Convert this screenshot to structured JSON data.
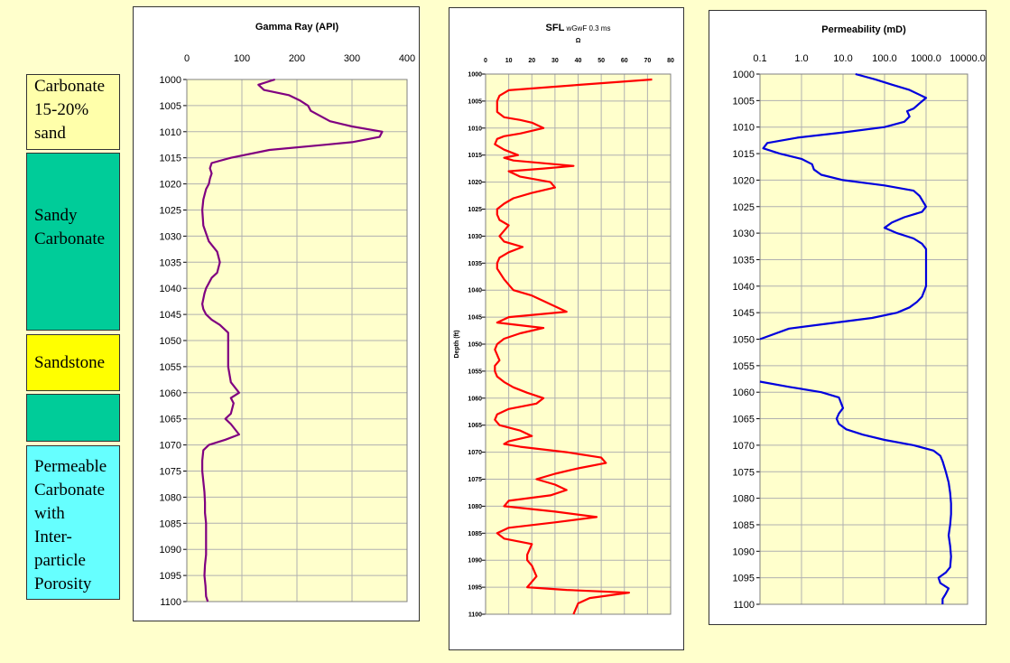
{
  "lithology": [
    {
      "label": "Carbonate\n15-20%\nsand",
      "color": "#ffffaa"
    },
    {
      "label": "\nSandy\nCarbonate",
      "color": "#00cc99"
    },
    {
      "label": "Sandstone",
      "color": "#ffff00"
    },
    {
      "label": "",
      "color": "#00cc99"
    },
    {
      "label": "Permeable\nCarbonate\nwith\nInter-\nparticle\nPorosity",
      "color": "#66ffff"
    }
  ],
  "chart_data": [
    {
      "type": "line",
      "title": "Gamma Ray (API)",
      "x_axis_position": "top",
      "xlim": [
        0,
        400
      ],
      "x_ticks": [
        "0",
        "100",
        "200",
        "300",
        "400"
      ],
      "ylim": [
        1000,
        1100
      ],
      "y_ticks": [
        "1000",
        "1005",
        "1010",
        "1015",
        "1020",
        "1025",
        "1030",
        "1035",
        "1040",
        "1045",
        "1050",
        "1055",
        "1060",
        "1065",
        "1070",
        "1075",
        "1080",
        "1085",
        "1090",
        "1095",
        "1100"
      ],
      "ylabel": "",
      "grid": true,
      "series": [
        {
          "color": "#800080",
          "x": [
            160,
            130,
            140,
            185,
            205,
            220,
            225,
            260,
            300,
            355,
            350,
            300,
            250,
            150,
            80,
            45,
            42,
            45,
            42,
            40,
            35,
            30,
            28,
            30,
            40,
            55,
            60,
            55,
            45,
            35,
            32,
            30,
            28,
            30,
            35,
            45,
            60,
            75,
            75,
            75,
            75,
            80,
            95,
            80,
            85,
            80,
            70,
            80,
            95,
            70,
            40,
            30,
            28,
            28,
            30,
            32,
            33,
            33,
            35,
            35,
            35,
            35,
            33,
            32,
            34,
            35,
            38
          ],
          "y": [
            1000,
            1001,
            1002,
            1003,
            1004,
            1005,
            1006,
            1008,
            1009,
            1010,
            1011,
            1012,
            1012.5,
            1013.5,
            1015,
            1016,
            1017,
            1018,
            1019,
            1020,
            1021,
            1023,
            1025,
            1028,
            1031,
            1033,
            1035,
            1037,
            1038,
            1040,
            1041,
            1042,
            1043,
            1044,
            1045,
            1046,
            1047,
            1048.5,
            1050,
            1051,
            1055,
            1058,
            1060,
            1061,
            1062,
            1064,
            1065,
            1066,
            1068,
            1069,
            1070,
            1071,
            1073,
            1075,
            1077,
            1079,
            1081,
            1083,
            1085,
            1087,
            1089,
            1091,
            1093,
            1095,
            1097,
            1099,
            1100
          ]
        }
      ]
    },
    {
      "type": "line",
      "title": "SFL",
      "title_suffix": "wGwF 0.3 ms",
      "subtitle": "Ω",
      "x_axis_position": "top",
      "xlim": [
        0,
        80
      ],
      "x_ticks": [
        "0",
        "10",
        "20",
        "30",
        "40",
        "50",
        "60",
        "70",
        "80"
      ],
      "ylim": [
        1000,
        1100
      ],
      "y_ticks": [
        "1000",
        "1005",
        "1010",
        "1015",
        "1020",
        "1025",
        "1030",
        "1035",
        "1040",
        "1045",
        "1050",
        "1055",
        "1060",
        "1065",
        "1070",
        "1075",
        "1080",
        "1085",
        "1090",
        "1095",
        "1100"
      ],
      "ylabel": "Depth (ft)",
      "grid": true,
      "series": [
        {
          "color": "#ff0000",
          "x": [
            72,
            40,
            10,
            6,
            5,
            5,
            5,
            8,
            15,
            20,
            25,
            15,
            8,
            5,
            4,
            8,
            14,
            8,
            12,
            38,
            25,
            10,
            15,
            28,
            30,
            20,
            12,
            8,
            5,
            5,
            6,
            10,
            8,
            6,
            8,
            16,
            10,
            6,
            5,
            5,
            8,
            10,
            12,
            20,
            35,
            10,
            5,
            25,
            15,
            8,
            5,
            4,
            6,
            4,
            4,
            5,
            8,
            12,
            18,
            25,
            22,
            10,
            5,
            4,
            6,
            15,
            20,
            10,
            8,
            15,
            35,
            50,
            52,
            40,
            30,
            22,
            30,
            35,
            28,
            10,
            8,
            30,
            48,
            30,
            10,
            5,
            8,
            20,
            18,
            18,
            20,
            22,
            20,
            18,
            35,
            62,
            45,
            40,
            38
          ],
          "y": [
            1001,
            1002,
            1003,
            1004,
            1005,
            1006,
            1007,
            1008,
            1008.5,
            1009,
            1010,
            1011,
            1011.5,
            1012,
            1013,
            1014,
            1015,
            1015.5,
            1016,
            1017,
            1017.5,
            1018,
            1019,
            1020,
            1021,
            1022,
            1023,
            1024,
            1025,
            1026,
            1027,
            1028,
            1029,
            1030,
            1031,
            1032,
            1033,
            1034,
            1035,
            1036,
            1038,
            1039,
            1040,
            1041,
            1044,
            1045,
            1046,
            1047,
            1048,
            1049,
            1050,
            1051,
            1053,
            1054,
            1055,
            1056,
            1057,
            1058,
            1059,
            1060,
            1061,
            1062,
            1063,
            1064,
            1065,
            1066,
            1067,
            1068,
            1068.5,
            1069,
            1070,
            1071,
            1072,
            1073,
            1074,
            1075,
            1076,
            1077,
            1078,
            1079,
            1080,
            1081,
            1082,
            1083,
            1084,
            1085,
            1086,
            1087,
            1089,
            1090,
            1091,
            1093,
            1094,
            1095,
            1095.5,
            1096,
            1097,
            1098,
            1100
          ]
        }
      ]
    },
    {
      "type": "line",
      "title": "Permeability (mD)",
      "x_axis_position": "top",
      "x_scale": "log",
      "xlim": [
        0.1,
        10000
      ],
      "x_ticks": [
        "0.1",
        "1.0",
        "10.0",
        "100.0",
        "1000.0",
        "10000.0"
      ],
      "ylim": [
        1000,
        1100
      ],
      "y_ticks": [
        "1000",
        "1005",
        "1010",
        "1015",
        "1020",
        "1025",
        "1030",
        "1035",
        "1040",
        "1045",
        "1050",
        "1055",
        "1060",
        "1065",
        "1070",
        "1075",
        "1080",
        "1085",
        "1090",
        "1095",
        "1100"
      ],
      "ylabel": "",
      "grid": true,
      "series": [
        {
          "color": "#0000dd",
          "x": [
            20,
            60,
            150,
            400,
            1000,
            700,
            500,
            350,
            400,
            300,
            100,
            10,
            0.8,
            0.15,
            0.12,
            0.3,
            1,
            1.8,
            2,
            3,
            10,
            100,
            500,
            700,
            1000,
            800,
            300,
            150,
            100,
            200,
            500,
            800,
            1000,
            1000,
            1000,
            1000,
            800,
            600,
            400,
            200,
            50,
            5,
            0.5,
            0.1
          ],
          "y": [
            1000,
            1001,
            1002,
            1003,
            1004.5,
            1005.5,
            1006.5,
            1007,
            1008,
            1009,
            1010,
            1011,
            1012,
            1013,
            1014,
            1015,
            1016,
            1017,
            1018,
            1019,
            1020,
            1021,
            1022,
            1023,
            1025,
            1026,
            1027,
            1028,
            1029,
            1030,
            1031,
            1032,
            1033,
            1035,
            1038,
            1040,
            1042,
            1043,
            1044,
            1045,
            1046,
            1047,
            1048,
            1050
          ]
        },
        {
          "color": "#0000dd",
          "x": [
            0.1,
            0.5,
            3,
            8,
            10,
            8,
            7,
            8,
            12,
            30,
            100,
            500,
            1500,
            2200,
            2500,
            3000,
            3500,
            3800,
            4000,
            4000,
            3800,
            3500,
            3800,
            4000,
            3800,
            3000,
            2000,
            2200,
            3500,
            3000,
            2500,
            2500
          ],
          "y": [
            1058,
            1059,
            1060,
            1061,
            1063,
            1064,
            1065,
            1066,
            1067,
            1068,
            1069,
            1070,
            1071,
            1072,
            1073,
            1075,
            1077,
            1079,
            1081,
            1083,
            1085,
            1087,
            1089,
            1091,
            1093,
            1094,
            1095,
            1096,
            1097,
            1098,
            1099,
            1100
          ]
        }
      ]
    }
  ]
}
